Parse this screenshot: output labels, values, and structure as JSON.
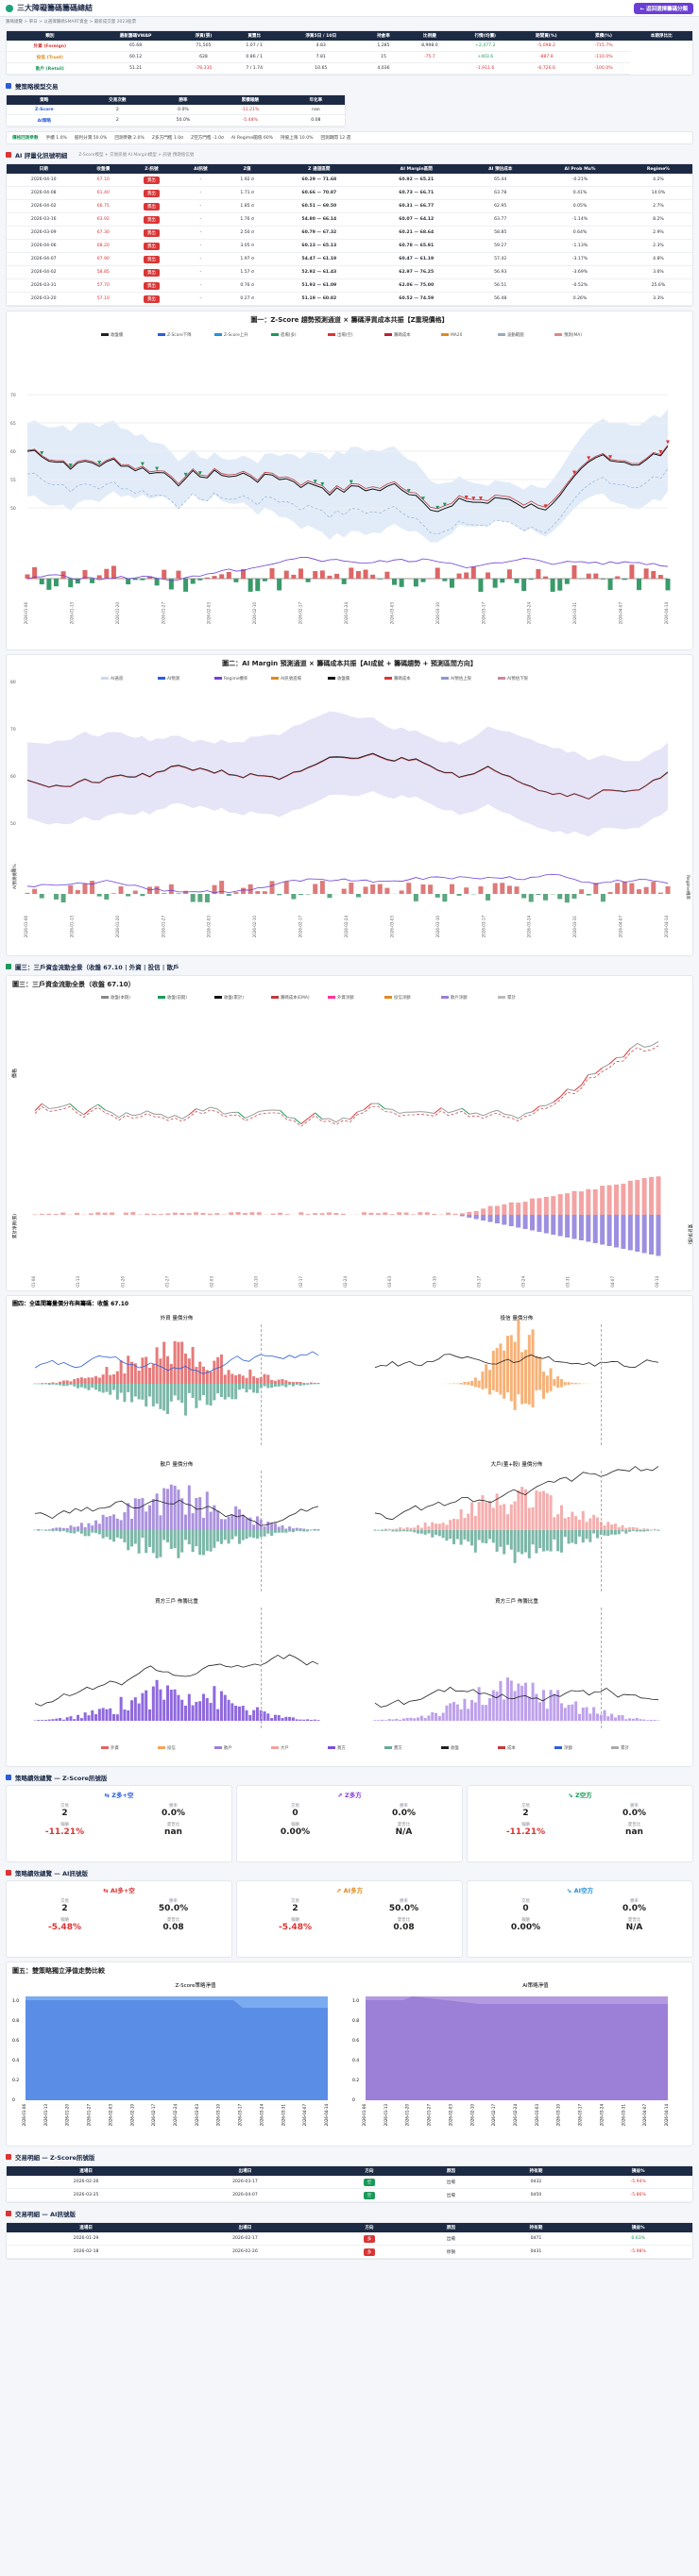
{
  "app": {
    "title": "三大障礙籌碼籌碼總結",
    "back_label": "← 返回選擇籌碼分類",
    "breadcrumb": "籌碼總覽 > 單日 > 以選擇籌碼SMART資金 > 最新成交量 2023股票"
  },
  "summary": {
    "headers": [
      "類別",
      "最新籌碼VWAP",
      "淨買(張)",
      "買賣比",
      "淨買5日 / 10日",
      "持倉率",
      "比例變",
      "行情(均價)",
      "期間買(%)",
      "累積(%)",
      "本期淨比比"
    ],
    "rows": [
      {
        "name": "外資 (Foreign)",
        "c": [
          "65.68",
          "71,505",
          "1.07 / 1",
          "4.83",
          "1,285",
          "8,998.0",
          "+2,477.2",
          "-5,098.2",
          "-715.7%"
        ]
      },
      {
        "name": "投信 (Trust)",
        "c": [
          "60.12",
          "628",
          "0.86 / 1",
          "7.81",
          "15",
          "-75.7",
          "+403.6",
          "-887.8",
          "-110.0%"
        ]
      },
      {
        "name": "散戶 (Retail)",
        "c": [
          "51.21",
          "-78,335",
          "7 / 1.74",
          "10.65",
          "4,036",
          "",
          "-1,911.6",
          "-6,726.6",
          "-100.0%"
        ]
      }
    ],
    "name_colors": [
      "#d33",
      "#e08a1e",
      "#1a9a5a"
    ]
  },
  "model": {
    "title": "雙策略模型交易",
    "headers": [
      "策略",
      "交易次數",
      "勝率",
      "累積報酬",
      "年化率"
    ],
    "rows": [
      [
        "Z-Score",
        "2",
        "0.0%",
        "-11.21%",
        "nan"
      ],
      [
        "AI策略",
        "2",
        "50.0%",
        "-5.48%",
        "0.08"
      ]
    ]
  },
  "params": [
    {
      "k": "價格回測參數",
      "v": ""
    },
    {
      "k": "手續 1.0%",
      "v": ""
    },
    {
      "k": "股利分潤 50.0%",
      "v": ""
    },
    {
      "k": "回測參數 2.0%",
      "v": ""
    },
    {
      "k": "Z多方門檻 1.0σ",
      "v": ""
    },
    {
      "k": "Z空方門檻 -1.0σ",
      "v": ""
    },
    {
      "k": "AI Regime閾值 60%",
      "v": ""
    },
    {
      "k": "持股上限 10.0%",
      "v": ""
    },
    {
      "k": "回測期間 12 週",
      "v": ""
    }
  ],
  "signals": {
    "title": "AI 評量化訊號明細",
    "legend": [
      "Z-Score模型 + 交易訊號",
      "AI Margin模型 + 訊號",
      "預期值信號"
    ],
    "headers": [
      "日期",
      "收盤價",
      "Z-訊號",
      "AI訊號",
      "Z值",
      "Z 通道區間",
      "AI Margin區間",
      "AI 預估成本",
      "AI Prob Mu%",
      "Regime%"
    ],
    "rows": [
      [
        "2026-04-10",
        "67.10",
        "賣出",
        "-",
        "1.92 σ",
        "60.29 — 71.68",
        "60.92 — 65.21",
        "65.44",
        "-0.21%",
        "4.2%"
      ],
      [
        "2026-04-08",
        "61.40",
        "賣出",
        "-",
        "1.71 σ",
        "60.66 — 70.87",
        "60.73 — 66.71",
        "63.78",
        "0.41%",
        "14.0%"
      ],
      [
        "2026-04-02",
        "66.75",
        "賣出",
        "-",
        "1.85 σ",
        "60.51 — 69.50",
        "60.31 — 66.77",
        "62.95",
        "0.05%",
        "2.7%"
      ],
      [
        "2026-03-16",
        "63.92",
        "賣出",
        "-",
        "1.76 σ",
        "54.80 — 66.14",
        "60.07 — 64.12",
        "63.77",
        "-1.14%",
        "8.2%"
      ],
      [
        "2026-03-09",
        "67.30",
        "賣出",
        "-",
        "2.50 σ",
        "60.79 — 67.32",
        "60.21 — 68.64",
        "58.85",
        "0.64%",
        "2.9%"
      ],
      [
        "2026-04-06",
        "68.20",
        "賣出",
        "-",
        "3.05 σ",
        "60.13 — 65.13",
        "60.78 — 65.91",
        "59.27",
        "-1.13%",
        "2.3%"
      ],
      [
        "2026-04-07",
        "67.90",
        "賣出",
        "-",
        "1.97 σ",
        "54.47 — 61.19",
        "60.47 — 61.19",
        "57.42",
        "-3.17%",
        "4.8%"
      ],
      [
        "2026-04-02",
        "58.85",
        "賣出",
        "-",
        "1.57 σ",
        "52.92 — 61.43",
        "62.97 — 76.25",
        "56.93",
        "-3.69%",
        "3.6%"
      ],
      [
        "2026-03-31",
        "57.70",
        "賣出",
        "-",
        "0.76 σ",
        "51.93 — 61.09",
        "62.06 — 75.00",
        "56.51",
        "-0.52%",
        "25.6%"
      ],
      [
        "2026-03-20",
        "57.10",
        "賣出",
        "-",
        "0.27 σ",
        "51.19 — 60.82",
        "60.52 — 74.59",
        "56.48",
        "0.26%",
        "3.3%"
      ]
    ]
  },
  "chart1": {
    "title": "圖一：Z-Score 趨勢預測通道 × 籌碼淨買成本共振【Z重現價格】",
    "legend": [
      "收盤價",
      "Z-Score下降",
      "Z-Score上升",
      "進場(多)",
      "出場(空)",
      "籌碼成本",
      "MA20",
      "波動範圍",
      "預測(MA)"
    ]
  },
  "chart2": {
    "title": "圖二：AI Margin 預測通道 × 籌碼成本共振【AI成就 + 籌碼趨勢 + 預測區間方向】",
    "legend": [
      "AI通道",
      "AI預測",
      "Regime機率",
      "AI訊號進場",
      "收盤價",
      "籌碼成本",
      "AI預估上限",
      "AI預估下限"
    ],
    "ylabel": "Regime機率",
    "ylabel_left": "AI預測機率%"
  },
  "chart3": {
    "title": "圖三：三戶資金流動全景（收盤 67.10）",
    "legend_head": "圖三：三戶資金流動全景（收盤 67.10 | 外資 | 投信 | 散戶",
    "legend": [
      "收盤(本期)",
      "收盤(前期)",
      "收盤(累計)",
      "籌碼成本(EMA)",
      "外資淨額",
      "投信淨額",
      "散戶淨額",
      "累計"
    ],
    "ylabel": "價格",
    "ylabel2": "累計淨買(張)",
    "ylabel_r": "累計淨(張)"
  },
  "chart4": {
    "title": "圖四：全區間籌量價分布與籌碼：收盤 67.10",
    "panels": [
      "外資 量價分佈",
      "投信 量價分佈",
      "散戶 量價分佈",
      "大戶(董+股) 量價分佈",
      "買方三戶 佈籌比重",
      "買方三戶 佈籌比重"
    ],
    "legend": [
      "外資",
      "投信",
      "散戶",
      "大戶",
      "買方",
      "賣方",
      "收盤",
      "成本",
      "淨額",
      "累計"
    ]
  },
  "zstrat": {
    "title": "策略績效總覽 — Z-Score訊號版",
    "cards": [
      {
        "name": "Z多+空",
        "icon": "⇆",
        "color": "#2b5dd8",
        "trades": "2",
        "win": "0.0%",
        "ret": "-11.21%",
        "sharpe": "nan"
      },
      {
        "name": "Z多方",
        "icon": "⇗",
        "color": "#8a3fd6",
        "trades": "0",
        "win": "0.0%",
        "ret": "0.00%",
        "sharpe": "N/A"
      },
      {
        "name": "Z空方",
        "icon": "⇘",
        "color": "#1a9a5a",
        "trades": "2",
        "win": "0.0%",
        "ret": "-11.21%",
        "sharpe": "nan"
      }
    ]
  },
  "aistrat": {
    "title": "策略績效總覽 — AI訊號版",
    "cards": [
      {
        "name": "AI多+空",
        "icon": "⇆",
        "color": "#d33",
        "trades": "2",
        "win": "50.0%",
        "ret": "-5.48%",
        "sharpe": "0.08"
      },
      {
        "name": "AI多方",
        "icon": "⇗",
        "color": "#e08a1e",
        "trades": "2",
        "win": "50.0%",
        "ret": "-5.48%",
        "sharpe": "0.08"
      },
      {
        "name": "AI空方",
        "icon": "⇘",
        "color": "#2b8fd6",
        "trades": "0",
        "win": "0.0%",
        "ret": "0.00%",
        "sharpe": "N/A"
      }
    ]
  },
  "stat_labels": {
    "trades": "交易",
    "win": "勝率",
    "ret": "報酬",
    "sharpe": "夏普比"
  },
  "chart5": {
    "title": "圖五：雙策略獨立淨值走勢比較",
    "left": "Z-Score策略淨值",
    "right": "AI策略淨值",
    "legend": [
      "淨值(1.0)",
      "Z多",
      "Z空",
      "AI通道",
      "AI多",
      "AI空"
    ]
  },
  "dates": [
    "2026-01-06",
    "2026-01-13",
    "2026-01-20",
    "2026-01-27",
    "2026-02-03",
    "2026-02-10",
    "2026-02-17",
    "2026-02-24",
    "2026-03-03",
    "2026-03-10",
    "2026-03-17",
    "2026-03-24",
    "2026-03-31",
    "2026-04-07",
    "2026-04-14"
  ],
  "ztrades": {
    "title": "交易明細 — Z-Score訊號版",
    "headers": [
      "進場日",
      "出場日",
      "方向",
      "原因",
      "持有期",
      "損益%"
    ],
    "rows": [
      [
        "2026-02-26",
        "2026-03-17",
        "空",
        "出場",
        "0d32",
        "-5.94%"
      ],
      [
        "2026-03-25",
        "2026-04-07",
        "空",
        "出場",
        "0d50",
        "-5.86%"
      ]
    ]
  },
  "aitrades": {
    "title": "交易明細 — AI訊號版",
    "headers": [
      "進場日",
      "出場日",
      "方向",
      "原因",
      "持有期",
      "損益%"
    ],
    "rows": [
      [
        "2026-01-29",
        "2026-02-17",
        "多",
        "出場",
        "0d71",
        "6.63%"
      ],
      [
        "2026-02-18",
        "2026-02-26",
        "多",
        "停損",
        "0d31",
        "-5.98%"
      ]
    ]
  }
}
